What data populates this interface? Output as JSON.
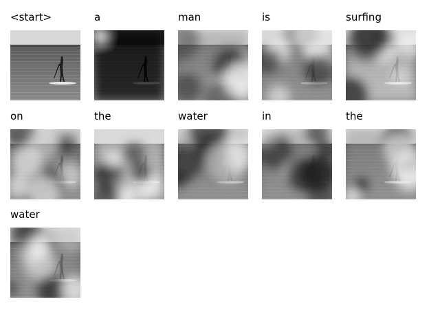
{
  "figure": {
    "tokens": [
      {
        "word": "<start>",
        "variant": "original"
      },
      {
        "word": "a",
        "variant": "dark"
      },
      {
        "word": "man",
        "variant": "attention"
      },
      {
        "word": "is",
        "variant": "attention"
      },
      {
        "word": "surfing",
        "variant": "light"
      },
      {
        "word": "on",
        "variant": "attention"
      },
      {
        "word": "the",
        "variant": "light"
      },
      {
        "word": "water",
        "variant": "attention"
      },
      {
        "word": "in",
        "variant": "attention"
      },
      {
        "word": "the",
        "variant": "attention"
      },
      {
        "word": "water",
        "variant": "attention"
      }
    ]
  }
}
